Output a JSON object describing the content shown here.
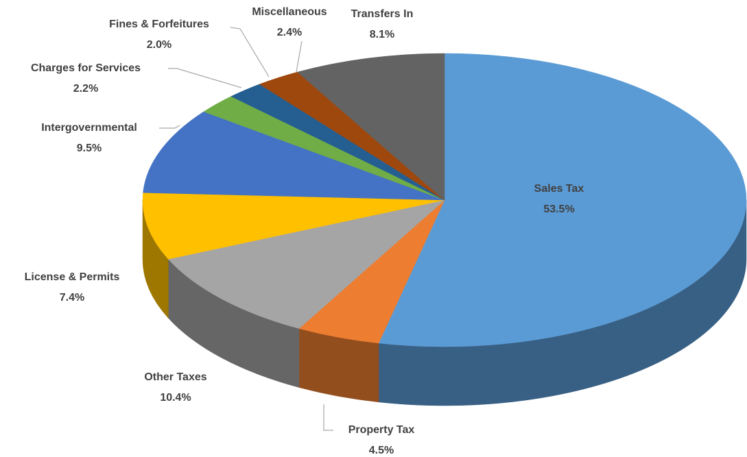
{
  "chart_data": {
    "type": "pie",
    "categories": [
      "Sales Tax",
      "Property Tax",
      "Other Taxes",
      "License & Permits",
      "Intergovernmental",
      "Charges for Services",
      "Fines & Forfeitures",
      "Miscellaneous",
      "Transfers In"
    ],
    "values": [
      53.5,
      4.5,
      10.4,
      7.4,
      9.5,
      2.2,
      2.0,
      2.4,
      8.1
    ],
    "value_labels": [
      "53.5%",
      "4.5%",
      "10.4%",
      "7.4%",
      "9.5%",
      "2.2%",
      "2.0%",
      "2.4%",
      "8.1%"
    ],
    "colors": [
      "#5b9bd5",
      "#ed7d31",
      "#a5a5a5",
      "#ffc000",
      "#4472c4",
      "#70ad47",
      "#255e91",
      "#9e480e",
      "#636363"
    ]
  }
}
